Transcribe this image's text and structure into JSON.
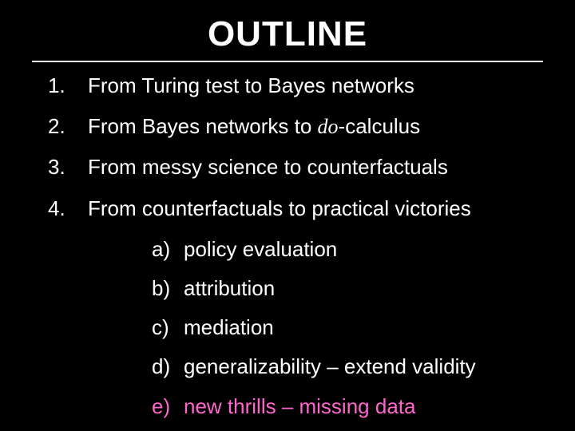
{
  "slide": {
    "title": "OUTLINE",
    "background_color": "#000000",
    "text_color": "#ffffff",
    "accent_color": "#ff66cc",
    "rule_color": "#ffffff",
    "title_fontsize": 44,
    "body_fontsize": 26,
    "items": [
      {
        "num": "1.",
        "text_before": "From Turing test to Bayes networks",
        "italic": "",
        "text_after": ""
      },
      {
        "num": "2.",
        "text_before": "From Bayes networks to ",
        "italic": "do",
        "text_after": "-calculus"
      },
      {
        "num": "3.",
        "text_before": "From messy science to counterfactuals",
        "italic": "",
        "text_after": ""
      },
      {
        "num": "4.",
        "text_before": "From counterfactuals to practical victories",
        "italic": "",
        "text_after": ""
      }
    ],
    "subitems": [
      {
        "label": "a)",
        "text": "policy evaluation",
        "highlight": false
      },
      {
        "label": "b)",
        "text": "attribution",
        "highlight": false
      },
      {
        "label": "c)",
        "text": "mediation",
        "highlight": false
      },
      {
        "label": "d)",
        "text": "generalizability – extend validity",
        "highlight": false
      },
      {
        "label": "e)",
        "text": "new thrills – missing data",
        "highlight": true
      }
    ]
  }
}
